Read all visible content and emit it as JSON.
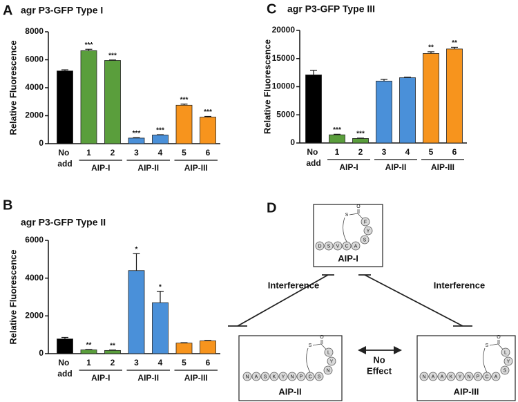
{
  "chart_data": [
    {
      "type": "bar",
      "panel": "A",
      "title": "agr P3-GFP Type I",
      "y_label": "Relative Fluorescence",
      "categories": [
        "No add",
        "1",
        "2",
        "3",
        "4",
        "5",
        "6"
      ],
      "groups": [
        "AIP-I",
        "AIP-II",
        "AIP-III"
      ],
      "values": [
        5200,
        6650,
        5950,
        400,
        620,
        2750,
        1900
      ],
      "errors": [
        80,
        100,
        30,
        30,
        20,
        80,
        50
      ],
      "annotations": [
        null,
        "***",
        "***",
        "***",
        "***",
        "***",
        "***"
      ],
      "colors": [
        "#000000",
        "#5a9e3c",
        "#5a9e3c",
        "#4a90d9",
        "#4a90d9",
        "#f7941d",
        "#f7941d"
      ],
      "ylim": [
        0,
        8000
      ],
      "yticks": [
        0,
        2000,
        4000,
        6000,
        8000
      ]
    },
    {
      "type": "bar",
      "panel": "B",
      "title": "agr P3-GFP Type II",
      "y_label": "Relative Fluorescence",
      "categories": [
        "No add",
        "1",
        "2",
        "3",
        "4",
        "5",
        "6"
      ],
      "groups": [
        "AIP-I",
        "AIP-II",
        "AIP-III"
      ],
      "values": [
        780,
        200,
        170,
        4400,
        2700,
        560,
        680
      ],
      "errors": [
        80,
        20,
        20,
        900,
        600,
        20,
        20
      ],
      "annotations": [
        null,
        "**",
        "**",
        "*",
        "*",
        null,
        null
      ],
      "colors": [
        "#000000",
        "#5a9e3c",
        "#5a9e3c",
        "#4a90d9",
        "#4a90d9",
        "#f7941d",
        "#f7941d"
      ],
      "ylim": [
        0,
        6000
      ],
      "yticks": [
        0,
        2000,
        4000,
        6000
      ]
    },
    {
      "type": "bar",
      "panel": "C",
      "title": "agr P3-GFP Type III",
      "y_label": "Relative Fluorescence",
      "categories": [
        "No add",
        "1",
        "2",
        "3",
        "4",
        "5",
        "6"
      ],
      "groups": [
        "AIP-I",
        "AIP-II",
        "AIP-III"
      ],
      "values": [
        12100,
        1450,
        800,
        11000,
        11600,
        15900,
        16700
      ],
      "errors": [
        800,
        100,
        60,
        300,
        100,
        300,
        300
      ],
      "annotations": [
        null,
        "***",
        "***",
        null,
        null,
        "**",
        "**"
      ],
      "colors": [
        "#000000",
        "#5a9e3c",
        "#5a9e3c",
        "#4a90d9",
        "#4a90d9",
        "#f7941d",
        "#f7941d"
      ],
      "ylim": [
        0,
        20000
      ],
      "yticks": [
        0,
        5000,
        10000,
        15000,
        20000
      ]
    }
  ],
  "diagram": {
    "panel": "D",
    "peptides": [
      {
        "label": "AIP-I",
        "chain": [
          "D",
          "S",
          "V",
          "C",
          "A"
        ],
        "ring": [
          "S",
          "Y",
          "F"
        ]
      },
      {
        "label": "AIP-II",
        "chain": [
          "N",
          "A",
          "S",
          "K",
          "Y",
          "N",
          "P",
          "C",
          "S"
        ],
        "ring": [
          "N",
          "Y",
          "L"
        ]
      },
      {
        "label": "AIP-III",
        "chain": [
          "N",
          "A",
          "A",
          "K",
          "Y",
          "N",
          "P",
          "C",
          "A"
        ],
        "ring": [
          "S",
          "Y",
          "L"
        ]
      }
    ],
    "linker_atoms": [
      "S",
      "O"
    ],
    "interference": [
      "Interference",
      "Interference"
    ],
    "no_effect": [
      "No",
      "Effect"
    ]
  }
}
